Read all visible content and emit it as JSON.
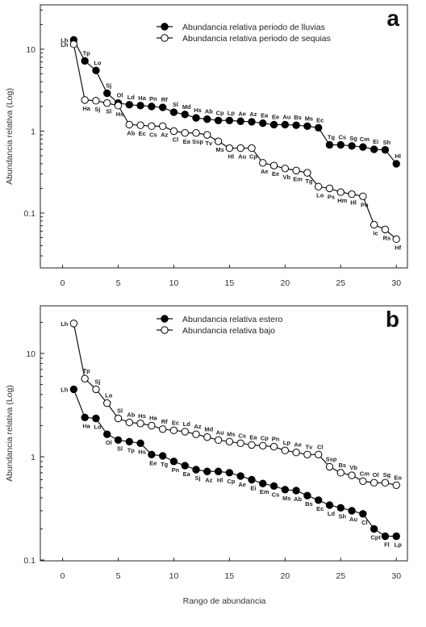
{
  "xlabel": "Rango de abundancia",
  "chart_data": [
    {
      "type": "line",
      "panel": "a",
      "ylabel": "Abundancia relativa (Log)",
      "xlim": [
        -2,
        31
      ],
      "ylim": [
        0.025,
        30
      ],
      "yscale": "log",
      "xticks": [
        "0",
        "5",
        "10",
        "15",
        "20",
        "25",
        "30"
      ],
      "yticks": [
        "10",
        "1",
        "0.1"
      ],
      "legend_position": "top-right",
      "series": [
        {
          "name": "Abundancia relativa periodo de lluvias",
          "filled": true,
          "x": [
            1,
            2,
            3,
            4,
            5,
            6,
            7,
            8,
            9,
            10,
            11,
            12,
            13,
            14,
            15,
            16,
            17,
            18,
            19,
            20,
            21,
            22,
            23,
            24,
            25,
            26,
            27,
            28,
            29,
            30
          ],
          "y": [
            13,
            7.2,
            5.5,
            2.9,
            2.2,
            2.1,
            2.05,
            2.0,
            1.95,
            1.7,
            1.6,
            1.45,
            1.4,
            1.35,
            1.35,
            1.32,
            1.3,
            1.25,
            1.2,
            1.2,
            1.18,
            1.15,
            1.1,
            0.68,
            0.68,
            0.66,
            0.64,
            0.6,
            0.59,
            0.4
          ],
          "labels": [
            "Lh",
            "Tp",
            "Lo",
            "Sj",
            "Ol",
            "Ld",
            "Ha",
            "Pn",
            "Rf",
            "Sl",
            "Md",
            "Hs",
            "Ab",
            "Cp",
            "Lp",
            "Ae",
            "Az",
            "Ea",
            "Ee",
            "Au",
            "Bs",
            "Ms",
            "Ec",
            "Tg",
            "Cs",
            "Sg",
            "Cm",
            "Ei",
            "Sh",
            "Hl"
          ]
        },
        {
          "name": "Abundancia relativa periodo de sequias",
          "filled": false,
          "x": [
            1,
            2,
            3,
            4,
            5,
            6,
            7,
            8,
            9,
            10,
            11,
            12,
            13,
            14,
            15,
            16,
            17,
            18,
            19,
            20,
            21,
            22,
            23,
            24,
            25,
            26,
            27,
            28,
            29,
            30
          ],
          "y": [
            11.5,
            2.4,
            2.35,
            2.2,
            2.05,
            1.2,
            1.18,
            1.15,
            1.15,
            1.0,
            0.95,
            0.95,
            0.9,
            0.75,
            0.62,
            0.62,
            0.62,
            0.41,
            0.38,
            0.35,
            0.33,
            0.31,
            0.21,
            0.2,
            0.18,
            0.17,
            0.16,
            0.072,
            0.063,
            0.048
          ],
          "labels": [
            "Lh",
            "Ha",
            "Sj",
            "Sl",
            "Hs",
            "Ab",
            "Ec",
            "Cs",
            "Az",
            "Cl",
            "Ea",
            "Ssp",
            "Tv",
            "Ms",
            "Hl",
            "Au",
            "Cp",
            "Ae",
            "Ee",
            "Vb",
            "Em",
            "Tg",
            "Lo",
            "Ps",
            "Hm",
            "Hl",
            "Pn",
            "Ic",
            "Rs",
            "Hf"
          ]
        }
      ]
    },
    {
      "type": "line",
      "panel": "b",
      "ylabel": "Abundancia relativa (Log)",
      "xlim": [
        -2,
        31
      ],
      "ylim": [
        0.1,
        30
      ],
      "yscale": "log",
      "xticks": [
        "0",
        "5",
        "10",
        "15",
        "20",
        "25",
        "30"
      ],
      "yticks": [
        "10",
        "1",
        "0.1"
      ],
      "legend_position": "top-right",
      "series": [
        {
          "name": "Abundancia relativa estero",
          "filled": true,
          "x": [
            1,
            2,
            3,
            4,
            5,
            6,
            7,
            8,
            9,
            10,
            11,
            12,
            13,
            14,
            15,
            16,
            17,
            18,
            19,
            20,
            21,
            22,
            23,
            24,
            25,
            26,
            27,
            28,
            29,
            30
          ],
          "y": [
            4.5,
            2.4,
            2.35,
            1.65,
            1.45,
            1.4,
            1.35,
            1.05,
            1.02,
            0.9,
            0.82,
            0.75,
            0.72,
            0.72,
            0.7,
            0.65,
            0.6,
            0.55,
            0.52,
            0.48,
            0.47,
            0.42,
            0.38,
            0.34,
            0.32,
            0.3,
            0.28,
            0.2,
            0.17,
            0.17
          ],
          "labels": [
            "Lh",
            "Ha",
            "Lo",
            "Ol",
            "Sl",
            "Tp",
            "Hs",
            "Ee",
            "Tg",
            "Pn",
            "Ea",
            "Sj",
            "Az",
            "Hl",
            "Cp",
            "Ae",
            "Ei",
            "Em",
            "Cs",
            "Ms",
            "Ab",
            "Bs",
            "Ec",
            "Ld",
            "Sh",
            "Au",
            "Cl",
            "Cpt",
            "Fl",
            "Lp"
          ]
        },
        {
          "name": "Abundancia relativa bajo",
          "filled": false,
          "x": [
            1,
            2,
            3,
            4,
            5,
            6,
            7,
            8,
            9,
            10,
            11,
            12,
            13,
            14,
            15,
            16,
            17,
            18,
            19,
            20,
            21,
            22,
            23,
            24,
            25,
            26,
            27,
            28,
            29,
            30
          ],
          "y": [
            19.5,
            5.7,
            4.5,
            3.3,
            2.35,
            2.15,
            2.1,
            2.0,
            1.85,
            1.8,
            1.75,
            1.65,
            1.55,
            1.45,
            1.4,
            1.35,
            1.3,
            1.28,
            1.25,
            1.15,
            1.1,
            1.05,
            1.05,
            0.8,
            0.7,
            0.66,
            0.58,
            0.56,
            0.56,
            0.53
          ],
          "labels": [
            "Lh",
            "Tp",
            "Sj",
            "Lo",
            "Sl",
            "Ab",
            "Hs",
            "Ha",
            "Rf",
            "Ec",
            "Ld",
            "Az",
            "Md",
            "Au",
            "Ms",
            "Cs",
            "Ea",
            "Cp",
            "Pn",
            "Lp",
            "Ae",
            "Tv",
            "Cl",
            "Ssp",
            "Bs",
            "Vb",
            "Cm",
            "Ol",
            "Sg",
            "Eo"
          ]
        }
      ]
    }
  ]
}
